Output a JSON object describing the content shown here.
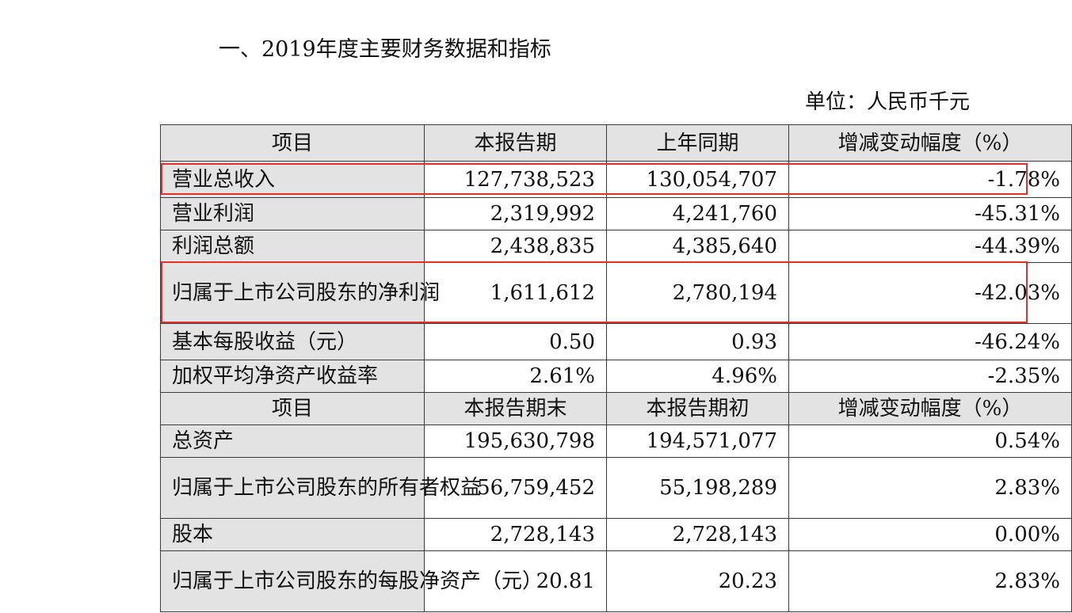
{
  "title": "一、2019年度主要财务数据和指标",
  "unit": "单位：人民币千元",
  "header1": [
    "项目",
    "本报告期",
    "上年同期",
    "增减变动幅度（%）"
  ],
  "rows1": [
    {
      "item": "营业总收入",
      "cur": "127,738,523",
      "prev": "130,054,707",
      "chg": "-1.78%"
    },
    {
      "item": "营业利润",
      "cur": "2,319,992",
      "prev": "4,241,760",
      "chg": "-45.31%"
    },
    {
      "item": "利润总额",
      "cur": "2,438,835",
      "prev": "4,385,640",
      "chg": "-44.39%"
    },
    {
      "item": "归属于上市公司股东的净利润",
      "cur": "1,611,612",
      "prev": "2,780,194",
      "chg": "-42.03%"
    },
    {
      "item": "基本每股收益（元）",
      "cur": "0.50",
      "prev": "0.93",
      "chg": "-46.24%"
    },
    {
      "item": "加权平均净资产收益率",
      "cur": "2.61%",
      "prev": "4.96%",
      "chg": "-2.35%"
    }
  ],
  "header2": [
    "项目",
    "本报告期末",
    "本报告期初",
    "增减变动幅度（%）"
  ],
  "rows2": [
    {
      "item": "总资产",
      "cur": "195,630,798",
      "prev": "194,571,077",
      "chg": "0.54%"
    },
    {
      "item": "归属于上市公司股东的所有者权益",
      "cur": "56,759,452",
      "prev": "55,198,289",
      "chg": "2.83%"
    },
    {
      "item": "股本",
      "cur": "2,728,143",
      "prev": "2,728,143",
      "chg": "0.00%"
    },
    {
      "item": "归属于上市公司股东的每股净资产（元）",
      "cur": "20.81",
      "prev": "20.23",
      "chg": "2.83%"
    }
  ],
  "highlight_color": "#e03030"
}
